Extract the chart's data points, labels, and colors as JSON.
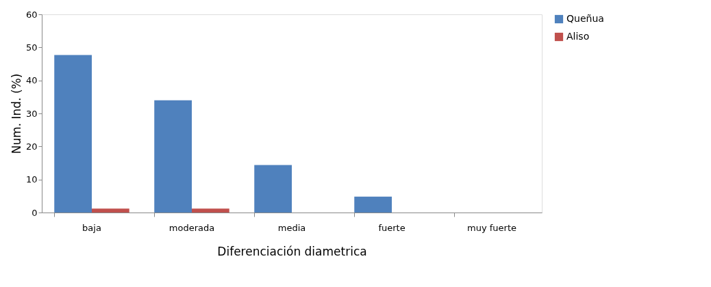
{
  "chart_data": {
    "type": "bar",
    "xlabel": "Diferenciación diametrica",
    "ylabel": "Num. Ind. (%)",
    "categories": [
      "baja",
      "moderada",
      "media",
      "fuerte",
      "muy fuerte"
    ],
    "series": [
      {
        "name": "Queñua",
        "color": "#4f81bd",
        "values": [
          47.7,
          34.0,
          14.4,
          4.8,
          0
        ]
      },
      {
        "name": "Aliso",
        "color": "#c0504d",
        "values": [
          1.2,
          1.2,
          0,
          0,
          0
        ]
      }
    ],
    "ylim": [
      0,
      60
    ],
    "yticks": [
      0,
      10,
      20,
      30,
      40,
      50,
      60
    ],
    "grid": false,
    "legend": "right"
  }
}
